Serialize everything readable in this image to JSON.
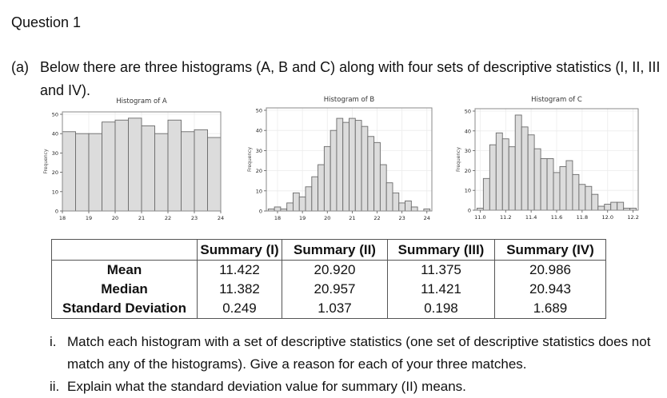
{
  "question": {
    "title": "Question 1",
    "part_label": "(a)",
    "part_text": "Below there are three histograms (A, B and C) along with four sets of descriptive statistics (I, II, III and IV)."
  },
  "chart_data": [
    {
      "type": "bar",
      "title": "Histogram of A",
      "xlabel": "",
      "ylabel": "Frequency",
      "ylim": [
        0,
        50
      ],
      "yticks": [
        0,
        10,
        20,
        30,
        40,
        50
      ],
      "xticks": [
        18,
        19,
        20,
        21,
        22,
        23,
        24
      ],
      "xlim": [
        18,
        24
      ],
      "bin_start": 18,
      "bin_width": 0.5,
      "values": [
        41,
        40,
        40,
        46,
        47,
        48,
        44,
        40,
        47,
        41,
        42,
        38
      ],
      "grid": true
    },
    {
      "type": "bar",
      "title": "Histogram of B",
      "xlabel": "",
      "ylabel": "Frequency",
      "ylim": [
        0,
        50
      ],
      "yticks": [
        0,
        10,
        20,
        30,
        40,
        50
      ],
      "xticks": [
        18,
        19,
        20,
        21,
        22,
        23,
        24
      ],
      "xlim": [
        17.55,
        24.2
      ],
      "bin_start": 17.625,
      "bin_width": 0.25,
      "values": [
        1,
        2,
        1,
        4,
        9,
        7,
        12,
        17,
        23,
        32,
        40,
        46,
        44,
        46,
        45,
        42,
        37,
        34,
        23,
        14,
        9,
        4,
        5,
        2,
        0,
        1
      ],
      "grid": true
    },
    {
      "type": "bar",
      "title": "Histogram of C",
      "xlabel": "",
      "ylabel": "Frequency",
      "ylim": [
        0,
        50
      ],
      "yticks": [
        0,
        10,
        20,
        30,
        40,
        50
      ],
      "xticks": [
        "11.0",
        "11.2",
        "11.4",
        "11.6",
        "11.8",
        "12.0",
        "12.2"
      ],
      "xlim": [
        10.96,
        12.24
      ],
      "bin_start": 10.975,
      "bin_width": 0.05,
      "values": [
        1,
        16,
        33,
        39,
        36,
        32,
        48,
        42,
        38,
        31,
        26,
        26,
        19,
        22,
        25,
        18,
        13,
        12,
        8,
        2,
        3,
        4,
        4,
        1,
        1
      ],
      "grid": true
    }
  ],
  "summary_table": {
    "headers": [
      "",
      "Summary (I)",
      "Summary (II)",
      "Summary (III)",
      "Summary (IV)"
    ],
    "rows": [
      {
        "label": "Mean",
        "values": [
          "11.422",
          "20.920",
          "11.375",
          "20.986"
        ]
      },
      {
        "label": "Median",
        "values": [
          "11.382",
          "20.957",
          "11.421",
          "20.943"
        ]
      },
      {
        "label": "Standard Deviation",
        "values": [
          "0.249",
          "1.037",
          "0.198",
          "1.689"
        ]
      }
    ]
  },
  "subquestions": [
    {
      "num": "i.",
      "text": "Match each histogram with a set of descriptive statistics (one set of descriptive statistics does not match any of the histograms). Give a reason for each of your three matches."
    },
    {
      "num": "ii.",
      "text": "Explain what the standard deviation value for summary (II) means."
    }
  ],
  "colors": {
    "bar_fill": "#dcdcdc",
    "bar_stroke": "#6a6a6a",
    "frame": "#8a8a8a",
    "grid": "#ececec",
    "text": "#111111"
  }
}
